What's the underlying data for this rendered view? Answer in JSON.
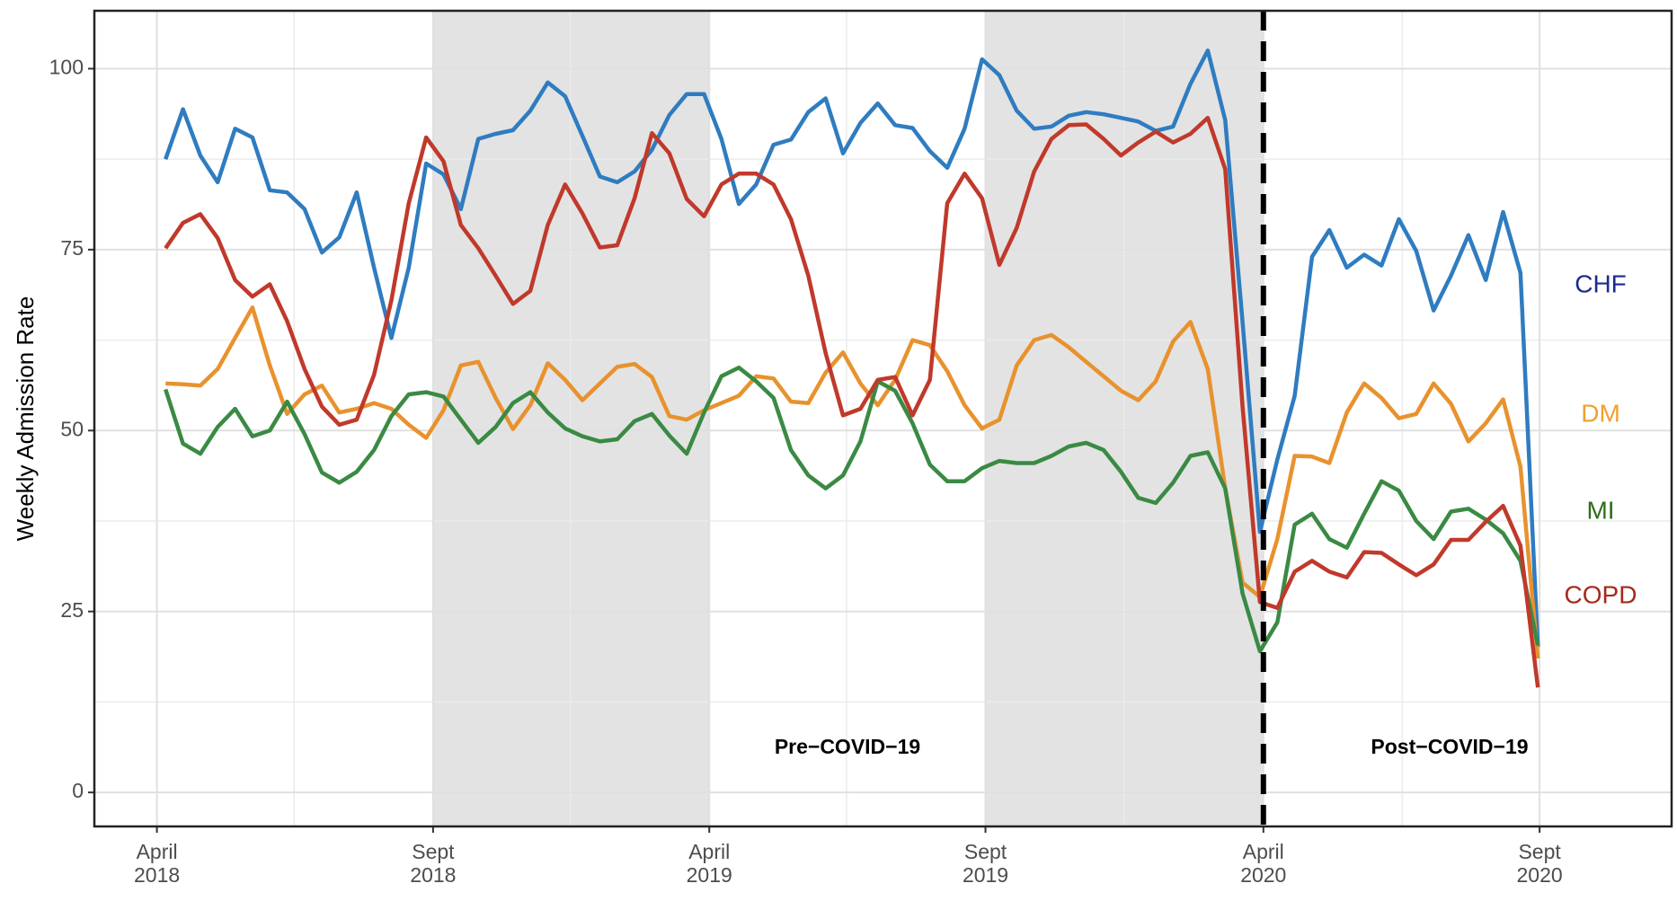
{
  "chart_data": {
    "type": "line",
    "y_label": "Weekly Admission Rate",
    "x": [
      0,
      1,
      2,
      3,
      4,
      5,
      6,
      7,
      8,
      9,
      10,
      11,
      12,
      13,
      14,
      15,
      16,
      17,
      18,
      19,
      20,
      21,
      22,
      23,
      24,
      25,
      26,
      27,
      28,
      29,
      30,
      31,
      32,
      33,
      34,
      35,
      36,
      37,
      38,
      39,
      40,
      41,
      42,
      43,
      44,
      45,
      46,
      47,
      48,
      49,
      50,
      51,
      52,
      53,
      54,
      55,
      56,
      57,
      58,
      59,
      60,
      61,
      62,
      63,
      64,
      65,
      66,
      67,
      68,
      69,
      70,
      71,
      72,
      73,
      74,
      75,
      76,
      77,
      78,
      79
    ],
    "xlim": [
      -4.1,
      86.7
    ],
    "xticks": [
      {
        "value": -0.5,
        "label": "April 2018"
      },
      {
        "value": 15.4,
        "label": "Sept 2018"
      },
      {
        "value": 31.3,
        "label": "April 2019"
      },
      {
        "value": 47.2,
        "label": "Sept 2019"
      },
      {
        "value": 63.2,
        "label": "April 2020"
      },
      {
        "value": 79.1,
        "label": "Sept 2020"
      }
    ],
    "xminor": [
      7.4,
      23.3,
      39.2,
      55.2,
      71.2
    ],
    "ylim": [
      -4.7,
      108
    ],
    "yticks": [
      0,
      25,
      50,
      75,
      100
    ],
    "yminor": [
      12.5,
      37.5,
      62.5,
      87.5
    ],
    "grid": true,
    "shaded_ranges": [
      [
        15.4,
        31.3
      ],
      [
        47.2,
        63.2
      ]
    ],
    "shade_color": "#e3e3e3",
    "vline": 63.2,
    "annotations": [
      "Pre−COVID−19",
      "Post−COVID−19"
    ],
    "series": [
      {
        "name": "CHF",
        "color": "#2f7cc0",
        "label_color": "#1b2a8f",
        "values": [
          87.5,
          94.4,
          88,
          84.3,
          91.7,
          90.5,
          83.2,
          82.9,
          80.6,
          74.6,
          76.7,
          82.9,
          72.5,
          62.8,
          72.5,
          86.9,
          85.4,
          80.6,
          90.3,
          91,
          91.5,
          94.2,
          98.1,
          96.2,
          90.7,
          85.1,
          84.3,
          85.8,
          88.8,
          93.6,
          96.5,
          96.5,
          90.3,
          81.3,
          84,
          89.5,
          90.2,
          94,
          95.9,
          88.3,
          92.5,
          95.2,
          92.2,
          91.8,
          88.6,
          86.3,
          91.7,
          101.3,
          99.1,
          94.2,
          91.7,
          92,
          93.5,
          94,
          93.7,
          93.2,
          92.7,
          91.4,
          92,
          97.9,
          102.5,
          92.9,
          65,
          36,
          46,
          54.8,
          74,
          77.7,
          72.5,
          74.3,
          72.8,
          79.2,
          74.8,
          66.6,
          71.4,
          77,
          70.8,
          80.2,
          71.8,
          20.1
        ]
      },
      {
        "name": "DM",
        "color": "#e8922e",
        "label_color": "#f0a030",
        "values": [
          56.5,
          56.4,
          56.2,
          58.5,
          62.8,
          67,
          59,
          52.3,
          55,
          56.2,
          52.5,
          53,
          53.8,
          53,
          50.8,
          49,
          52.8,
          59,
          59.5,
          54.5,
          50.2,
          53.5,
          59.3,
          57,
          54.2,
          56.5,
          58.8,
          59.2,
          57.4,
          52,
          51.5,
          52.8,
          53.8,
          54.8,
          57.5,
          57.2,
          54,
          53.8,
          58,
          60.8,
          56.5,
          53.5,
          57,
          62.5,
          61.8,
          58.2,
          53.5,
          50.3,
          51.5,
          59,
          62.5,
          63.2,
          61.5,
          59.5,
          57.5,
          55.5,
          54.2,
          56.8,
          62.3,
          65,
          58.5,
          42,
          29,
          27,
          35,
          46.5,
          46.4,
          45.5,
          52.5,
          56.5,
          54.5,
          51.7,
          52.3,
          56.5,
          53.7,
          48.5,
          51,
          54.3,
          45,
          18.5
        ]
      },
      {
        "name": "MI",
        "color": "#3a8a44",
        "label_color": "#2d6e1b",
        "values": [
          55.7,
          48.2,
          46.8,
          50.5,
          53,
          49.2,
          50,
          54,
          49.5,
          44.2,
          42.8,
          44.3,
          47.3,
          52,
          55,
          55.3,
          54.7,
          51.5,
          48.3,
          50.5,
          53.8,
          55.3,
          52.5,
          50.3,
          49.2,
          48.5,
          48.8,
          51.3,
          52.3,
          49.3,
          46.8,
          52.5,
          57.5,
          58.7,
          56.8,
          54.5,
          47.3,
          43.8,
          42,
          43.8,
          48.5,
          56.8,
          55.5,
          51,
          45.3,
          43,
          43,
          44.8,
          45.8,
          45.5,
          45.5,
          46.5,
          47.8,
          48.3,
          47.3,
          44.3,
          40.7,
          40,
          42.8,
          46.5,
          47,
          42,
          27.5,
          19.5,
          23.5,
          37,
          38.5,
          35,
          33.8,
          38.5,
          43,
          41.7,
          37.5,
          35,
          38.8,
          39.2,
          37.7,
          35.8,
          32,
          20.3
        ]
      },
      {
        "name": "COPD",
        "color": "#c0392b",
        "label_color": "#a52a1a",
        "values": [
          75.2,
          78.7,
          79.9,
          76.6,
          70.8,
          68.5,
          70.2,
          65.1,
          58.5,
          53.3,
          50.8,
          51.5,
          57.7,
          68,
          81.4,
          90.5,
          87.2,
          78.4,
          75.2,
          71.4,
          67.5,
          69.3,
          78.4,
          84,
          80,
          75.3,
          75.6,
          82.1,
          91.1,
          88.3,
          82,
          79.6,
          84,
          85.5,
          85.5,
          84,
          79.2,
          71.4,
          60.7,
          52.1,
          53,
          57,
          57.4,
          52.1,
          57,
          81.4,
          85.5,
          82.1,
          72.9,
          78,
          85.8,
          90.3,
          92.2,
          92.3,
          90.3,
          88,
          89.8,
          91.3,
          89.8,
          91,
          93.2,
          86.1,
          53.3,
          26.3,
          25.5,
          30.5,
          32,
          30.5,
          29.7,
          33.2,
          33.1,
          31.5,
          30,
          31.5,
          34.9,
          34.9,
          37.4,
          39.6,
          34.1,
          14.5
        ]
      }
    ]
  }
}
